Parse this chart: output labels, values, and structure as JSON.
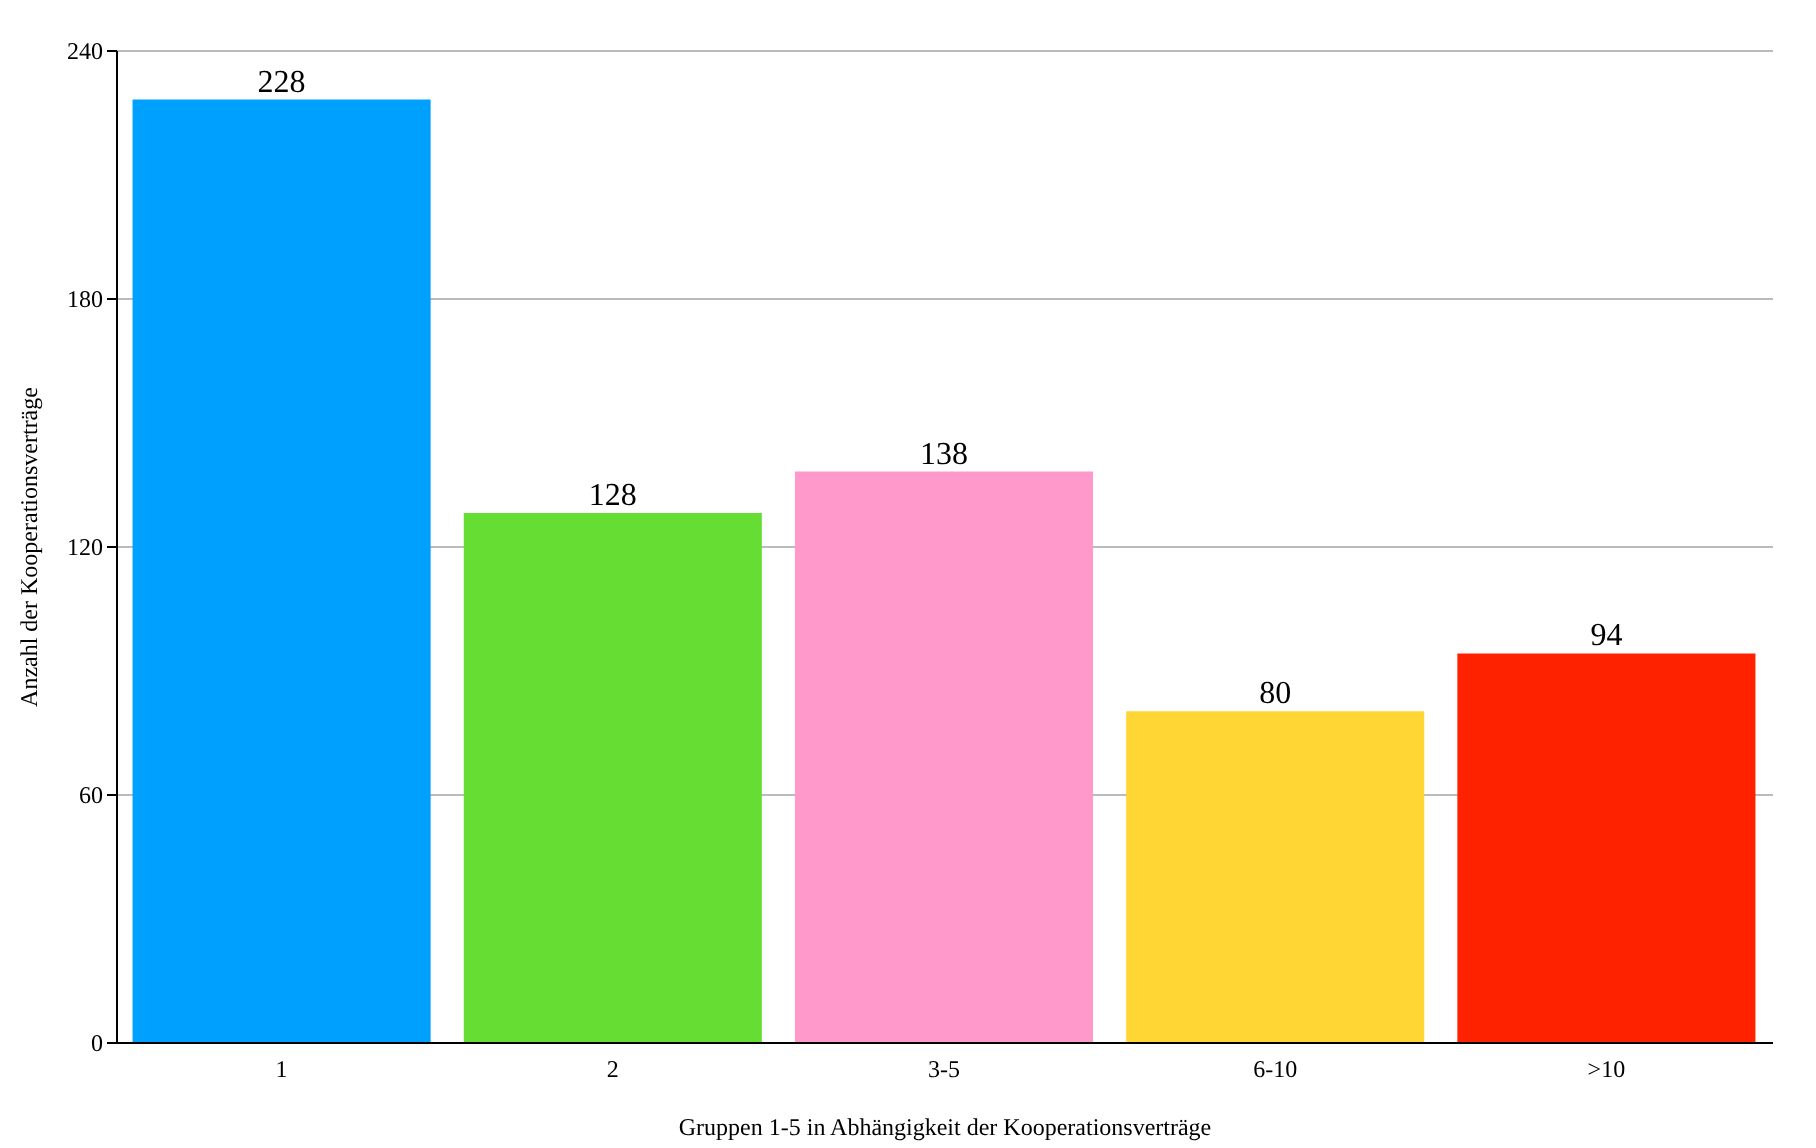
{
  "chart_data": {
    "type": "bar",
    "xlabel": "Gruppen 1-5 in Abhängigkeit der Kooperationsverträge",
    "ylabel": "Anzahl der Kooperationsverträge",
    "categories": [
      "1",
      "2",
      "3-5",
      "6-10",
      ">10"
    ],
    "values": [
      228,
      128,
      138,
      80,
      94
    ],
    "colors": [
      "#00a0ff",
      "#66dd33",
      "#ff99cc",
      "#ffd633",
      "#ff2200"
    ],
    "ylim": [
      0,
      240
    ],
    "yticks": [
      0,
      60,
      120,
      180,
      240
    ],
    "grid": "y",
    "data_labels": true
  }
}
